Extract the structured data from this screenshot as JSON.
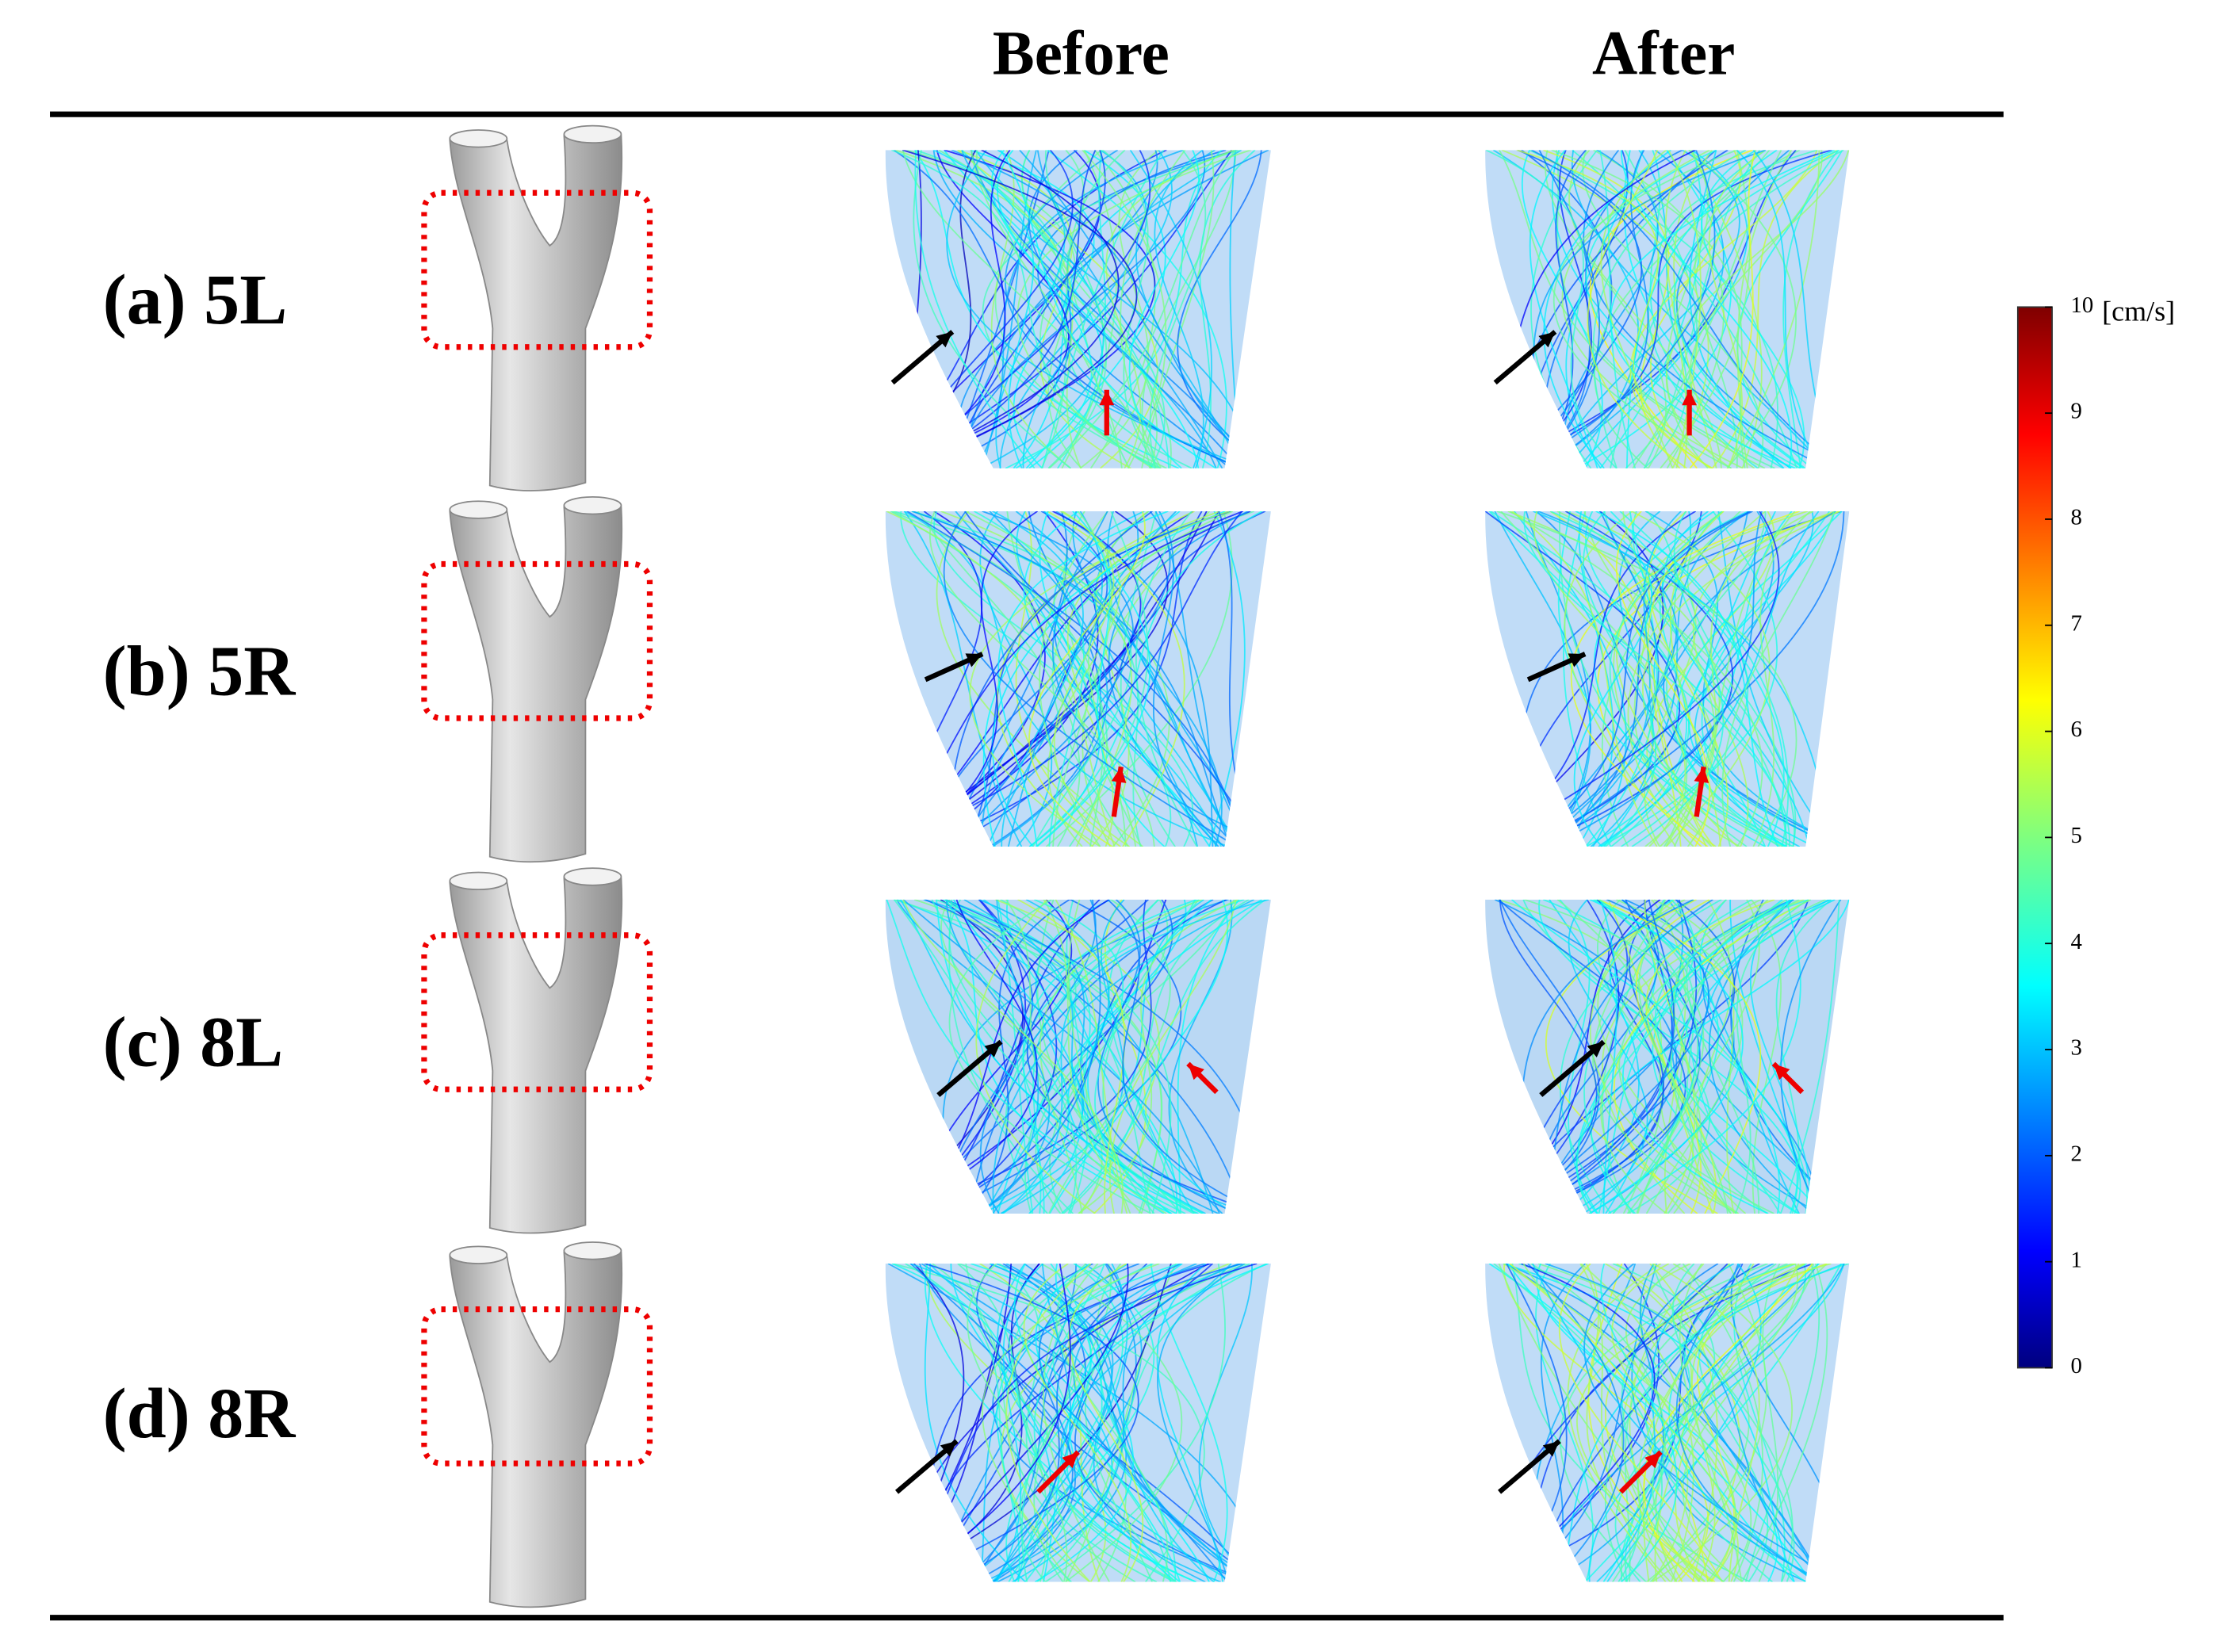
{
  "header": {
    "columns": [
      "Before",
      "After"
    ]
  },
  "rows": [
    {
      "label": "(a) 5L"
    },
    {
      "label": "(b) 5R"
    },
    {
      "label": "(c) 8L"
    },
    {
      "label": "(d) 8R"
    }
  ],
  "colorbar": {
    "unit": "[cm/s]",
    "range": [
      0,
      10
    ],
    "ticks": [
      0,
      1,
      2,
      3,
      4,
      5,
      6,
      7,
      8,
      9,
      10
    ]
  }
}
